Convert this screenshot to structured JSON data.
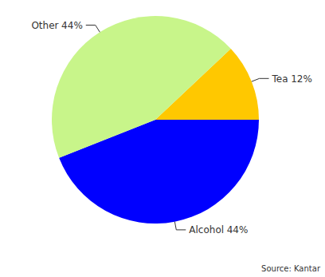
{
  "chart_data": {
    "type": "pie",
    "categories": [
      "Tea",
      "Alcohol",
      "Other"
    ],
    "values": [
      12,
      44,
      44
    ],
    "value_labels": [
      "12%",
      "44%",
      "44%"
    ],
    "colors": [
      "#ffc800",
      "#0000ff",
      "#c8f58a"
    ],
    "data_labels": true,
    "source": "Source: Kantar"
  }
}
